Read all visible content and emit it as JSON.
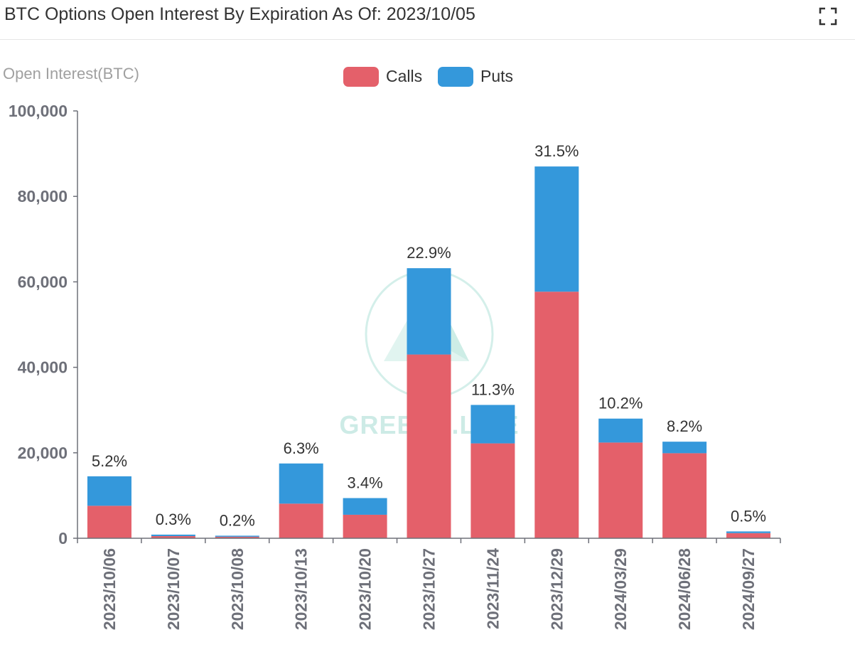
{
  "header": {
    "title": "BTC Options Open Interest By Expiration As Of: 2023/10/05",
    "expand_icon": "fullscreen-icon"
  },
  "watermark": {
    "text": "GREEKS.LIVE"
  },
  "chart_data": {
    "type": "bar",
    "stacked": true,
    "title": "",
    "xlabel": "",
    "ylabel": "Open Interest(BTC)",
    "ylim": [
      0,
      100000
    ],
    "yticks": [
      0,
      20000,
      40000,
      60000,
      80000,
      100000
    ],
    "ytick_labels": [
      "0",
      "20,000",
      "40,000",
      "60,000",
      "80,000",
      "100,000"
    ],
    "legend_position": "top-center",
    "categories": [
      "2023/10/06",
      "2023/10/07",
      "2023/10/08",
      "2023/10/13",
      "2023/10/20",
      "2023/10/27",
      "2023/11/24",
      "2023/12/29",
      "2024/03/29",
      "2024/06/28",
      "2024/09/27"
    ],
    "series": [
      {
        "name": "Calls",
        "color": "#e4606a",
        "values": [
          7600,
          500,
          350,
          8100,
          5500,
          43000,
          22200,
          57700,
          22400,
          19900,
          1200
        ]
      },
      {
        "name": "Puts",
        "color": "#3498db",
        "values": [
          6900,
          350,
          250,
          9400,
          3900,
          20200,
          9000,
          29300,
          5600,
          2700,
          400
        ]
      }
    ],
    "data_labels": [
      "5.2%",
      "0.3%",
      "0.2%",
      "6.3%",
      "3.4%",
      "22.9%",
      "11.3%",
      "31.5%",
      "10.2%",
      "8.2%",
      "0.5%"
    ]
  }
}
